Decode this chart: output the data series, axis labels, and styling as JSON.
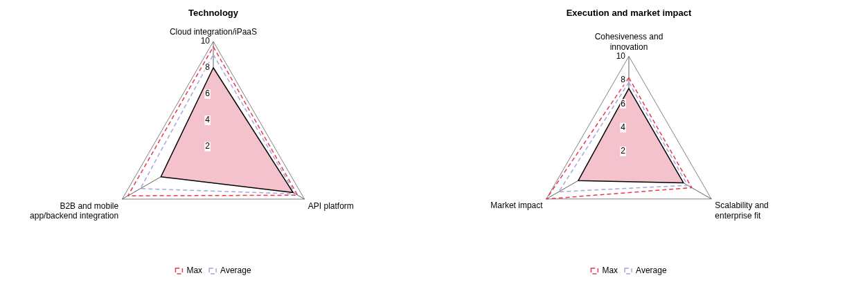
{
  "chart_data": [
    {
      "type": "radar",
      "title": "Technology",
      "categories": [
        "Cloud integration/iPaaS",
        "API platform",
        "B2B and mobile app/backend integration"
      ],
      "ylim": [
        2,
        10
      ],
      "yticks": [
        2,
        4,
        6,
        8,
        10
      ],
      "legend": "bottom",
      "marker": "none",
      "series": [
        {
          "color": "#f4c2cc",
          "values": [
            8.0,
            9.0,
            6.6
          ],
          "line_style": "solid"
        },
        {
          "name": "Max",
          "color": "#e8384f",
          "values": [
            9.6,
            9.4,
            9.5
          ],
          "line_style": "dashed"
        },
        {
          "name": "Average",
          "color": "#a9a4d9",
          "values": [
            9.0,
            9.2,
            8.4
          ],
          "line_style": "dashed"
        }
      ]
    },
    {
      "type": "radar",
      "title": "Execution and market impact",
      "categories": [
        "Cohesiveness and innovation",
        "Scalability and enterprise fit",
        "Market impact"
      ],
      "ylim": [
        2,
        10
      ],
      "yticks": [
        2,
        4,
        6,
        8,
        10
      ],
      "legend": "bottom",
      "marker": "none",
      "series": [
        {
          "color": "#f4c2cc",
          "values": [
            7.3,
            7.3,
            6.9
          ],
          "line_style": "solid"
        },
        {
          "name": "Max",
          "color": "#e8384f",
          "values": [
            8.2,
            8.1,
            10
          ],
          "line_style": "dashed"
        },
        {
          "name": "Average",
          "color": "#a9a4d9",
          "values": [
            7.8,
            7.7,
            8.8
          ],
          "line_style": "dashed"
        }
      ]
    }
  ]
}
